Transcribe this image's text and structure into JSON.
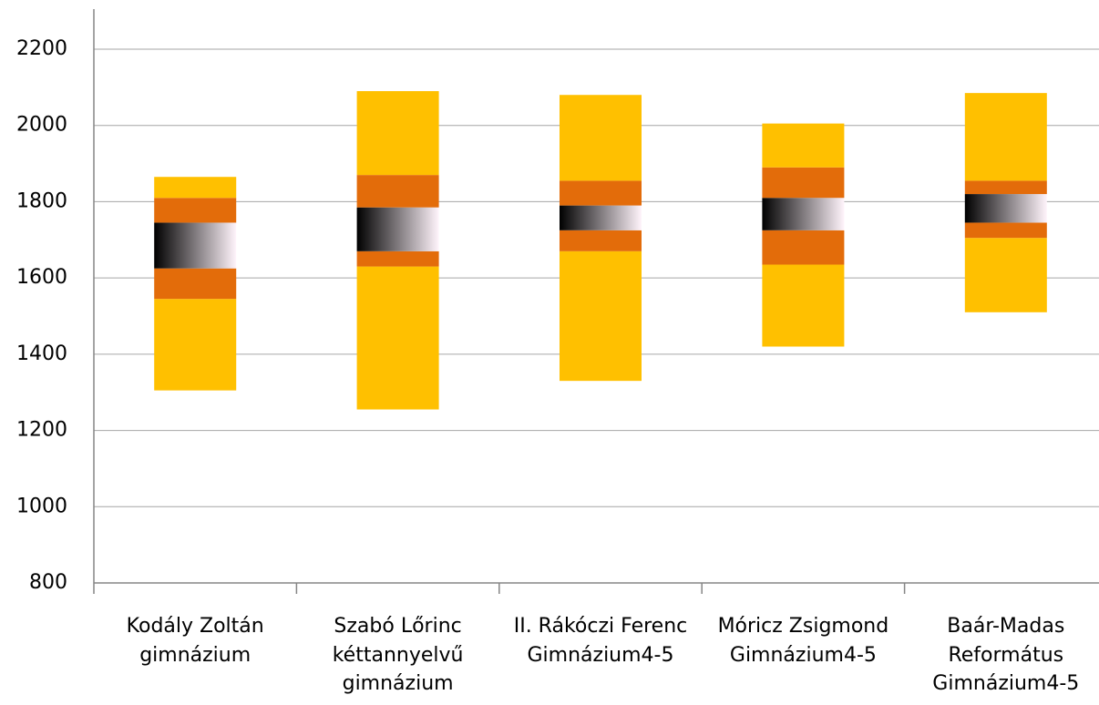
{
  "chart_data": {
    "type": "floating-bands",
    "categories": [
      "Kodály Zoltán\ngimnázium",
      "Szabó Lőrinc\nkéttannyelvű\ngimnázium",
      "II. Rákóczi Ferenc\nGimnázium4-5",
      "Móricz Zsigmond\nGimnázium4-5",
      "Baár-Madas\nReformátus\nGimnázium4-5"
    ],
    "series": [
      {
        "values": [
          1305,
          1255,
          1330,
          1420,
          1510
        ]
      },
      {
        "values": [
          1545,
          1630,
          1670,
          1635,
          1705
        ]
      },
      {
        "values": [
          1625,
          1670,
          1725,
          1725,
          1745
        ]
      },
      {
        "values": [
          1745,
          1785,
          1790,
          1810,
          1820
        ]
      },
      {
        "values": [
          1810,
          1870,
          1855,
          1890,
          1855
        ]
      },
      {
        "values": [
          1865,
          2090,
          2080,
          2005,
          2085
        ]
      }
    ],
    "band_colors": [
      "#ffc000",
      "#e36c0a",
      "gradient",
      "#e36c0a",
      "#ffc000"
    ],
    "ylim": [
      800,
      2200
    ],
    "yticks": [
      800,
      1000,
      1200,
      1400,
      1600,
      1800,
      2000,
      2200
    ],
    "grid": true
  }
}
